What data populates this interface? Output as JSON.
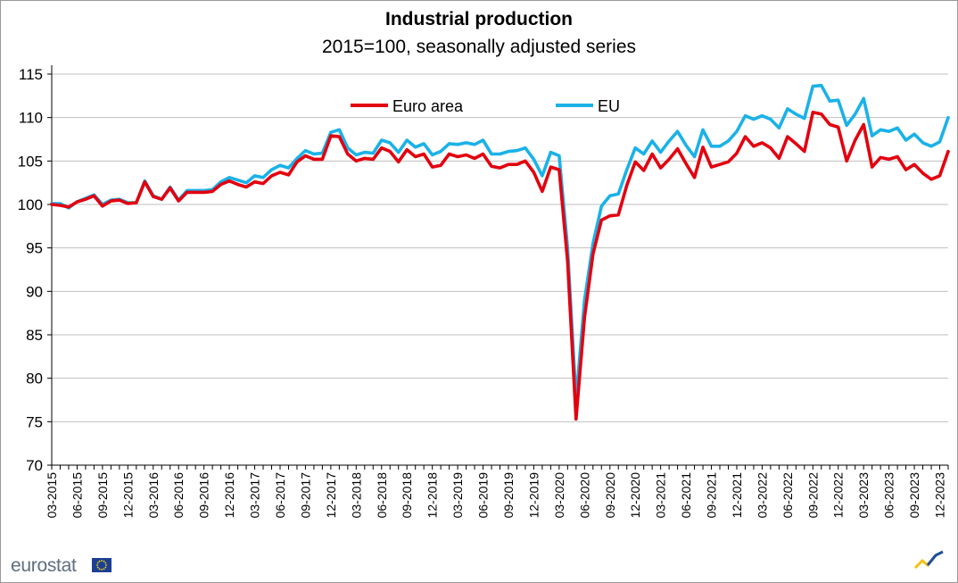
{
  "title": "Industrial production",
  "subtitle": "2015=100, seasonally adjusted series",
  "branding": {
    "logo_text": "eurostat",
    "flag_icon": "eu-flag-icon",
    "brand_mark": "eurostat-mark-icon"
  },
  "chart_data": {
    "type": "line",
    "ylim": [
      70,
      115
    ],
    "yticks": [
      70,
      75,
      80,
      85,
      90,
      95,
      100,
      105,
      110,
      115
    ],
    "x_start": "03-2015",
    "x_end": "12-2023",
    "xticks": [
      "03-2015",
      "06-2015",
      "09-2015",
      "12-2015",
      "03-2016",
      "06-2016",
      "09-2016",
      "12-2016",
      "03-2017",
      "06-2017",
      "09-2017",
      "12-2017",
      "03-2018",
      "06-2018",
      "09-2018",
      "12-2018",
      "03-2019",
      "06-2019",
      "09-2019",
      "12-2019",
      "03-2020",
      "06-2020",
      "09-2020",
      "12-2020",
      "03-2021",
      "06-2021",
      "09-2021",
      "12-2021",
      "03-2022",
      "06-2022",
      "09-2022",
      "12-2022",
      "03-2023",
      "06-2023",
      "09-2023",
      "12-2023"
    ],
    "grid": "horizontal",
    "legend_position": "top-center",
    "series": [
      {
        "name": "Euro area",
        "color": "#e3000f",
        "values": [
          100.0,
          99.9,
          99.7,
          100.3,
          100.6,
          101.0,
          99.8,
          100.4,
          100.5,
          100.1,
          100.2,
          102.6,
          100.9,
          100.6,
          101.9,
          100.4,
          101.4,
          101.4,
          101.4,
          101.5,
          102.3,
          102.7,
          102.3,
          102.0,
          102.6,
          102.4,
          103.3,
          103.7,
          103.4,
          104.9,
          105.6,
          105.2,
          105.2,
          107.9,
          107.8,
          105.8,
          105.0,
          105.3,
          105.2,
          106.5,
          106.1,
          104.9,
          106.3,
          105.5,
          105.8,
          104.3,
          104.5,
          105.8,
          105.5,
          105.7,
          105.3,
          105.8,
          104.4,
          104.2,
          104.6,
          104.6,
          105.0,
          103.7,
          101.5,
          104.3,
          104.0,
          93.5,
          75.3,
          87.0,
          94.3,
          98.2,
          98.7,
          98.8,
          102.2,
          104.9,
          103.9,
          105.8,
          104.2,
          105.2,
          106.4,
          104.7,
          103.1,
          106.6,
          104.3,
          104.6,
          104.9,
          105.9,
          107.8,
          106.7,
          107.1,
          106.5,
          105.3,
          107.8,
          107.0,
          106.1,
          110.6,
          110.4,
          109.2,
          108.9,
          105.0,
          107.4,
          109.2,
          104.3,
          105.4,
          105.2,
          105.5,
          104.0,
          104.6,
          103.6,
          102.9,
          103.3,
          106.1
        ]
      },
      {
        "name": "EU",
        "color": "#1ab2e8",
        "values": [
          100.1,
          100.1,
          99.6,
          100.3,
          100.7,
          101.1,
          100.0,
          100.5,
          100.6,
          100.2,
          100.2,
          102.7,
          101.0,
          100.6,
          102.0,
          100.5,
          101.6,
          101.6,
          101.6,
          101.7,
          102.6,
          103.1,
          102.8,
          102.5,
          103.3,
          103.1,
          104.0,
          104.5,
          104.2,
          105.3,
          106.2,
          105.8,
          105.9,
          108.3,
          108.6,
          106.5,
          105.7,
          106.0,
          105.9,
          107.4,
          107.1,
          106.0,
          107.4,
          106.6,
          107.0,
          105.7,
          106.1,
          107.0,
          106.9,
          107.1,
          106.9,
          107.4,
          105.8,
          105.8,
          106.1,
          106.2,
          106.5,
          105.2,
          103.3,
          106.0,
          105.6,
          95.0,
          77.5,
          89.0,
          95.5,
          99.8,
          101.0,
          101.2,
          104.0,
          106.5,
          105.8,
          107.3,
          106.0,
          107.3,
          108.4,
          106.8,
          105.5,
          108.6,
          106.7,
          106.7,
          107.3,
          108.4,
          110.2,
          109.8,
          110.2,
          109.8,
          108.8,
          111.0,
          110.4,
          109.9,
          113.6,
          113.7,
          111.9,
          112.0,
          109.1,
          110.4,
          112.2,
          107.9,
          108.6,
          108.4,
          108.8,
          107.4,
          108.1,
          107.1,
          106.7,
          107.2,
          110.0
        ]
      }
    ]
  }
}
